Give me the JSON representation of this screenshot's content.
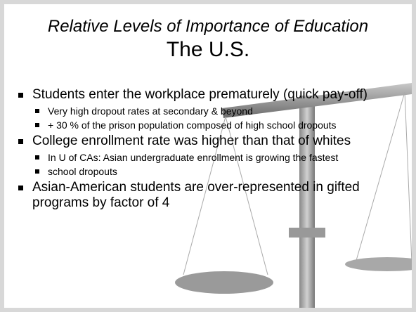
{
  "title": "Relative Levels of Importance of Education",
  "subtitle": "The U.S.",
  "bullets": [
    {
      "text": "Students enter the workplace prematurely (quick pay-off)",
      "sub": [
        "Very high dropout rates at secondary & beyond",
        "+ 30 % of the prison population composed of high school dropouts"
      ]
    },
    {
      "text": "College enrollment rate was higher than that of whites",
      "sub": [
        "In U of CAs: Asian undergraduate enrollment is growing the fastest",
        "school dropouts"
      ]
    },
    {
      "text": "Asian-American students are over-represented in gifted programs by factor of 4",
      "sub": []
    }
  ]
}
